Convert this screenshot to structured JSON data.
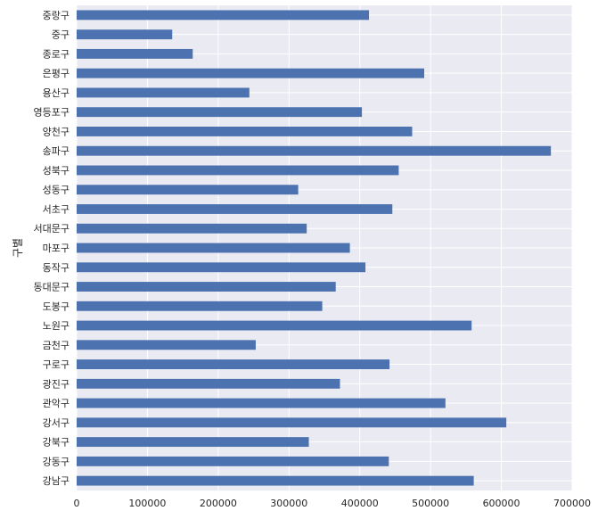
{
  "chart_data": {
    "type": "bar",
    "orientation": "horizontal",
    "title": "",
    "xlabel": "",
    "ylabel": "구별",
    "xlim": [
      0,
      700000
    ],
    "xticks": [
      0,
      100000,
      200000,
      300000,
      400000,
      500000,
      600000,
      700000
    ],
    "xtick_labels": [
      "0",
      "100000",
      "200000",
      "300000",
      "400000",
      "500000",
      "600000",
      "700000"
    ],
    "grid": true,
    "style": "seaborn-darkgrid",
    "colors": {
      "bar": "#4c72b0",
      "plot_bg": "#eaeaf2",
      "grid": "#ffffff",
      "text": "#262626"
    },
    "categories": [
      "강남구",
      "강동구",
      "강북구",
      "강서구",
      "관악구",
      "광진구",
      "구로구",
      "금천구",
      "노원구",
      "도봉구",
      "동대문구",
      "동작구",
      "마포구",
      "서대문구",
      "서초구",
      "성동구",
      "성북구",
      "송파구",
      "양천구",
      "영등포구",
      "용산구",
      "은평구",
      "종로구",
      "중구",
      "중랑구"
    ],
    "values": [
      561000,
      441000,
      328000,
      607000,
      521000,
      372000,
      442000,
      253000,
      558000,
      347000,
      366000,
      408000,
      386000,
      325000,
      446000,
      313000,
      455000,
      670000,
      474000,
      403000,
      244000,
      491000,
      164000,
      135000,
      413000
    ]
  }
}
